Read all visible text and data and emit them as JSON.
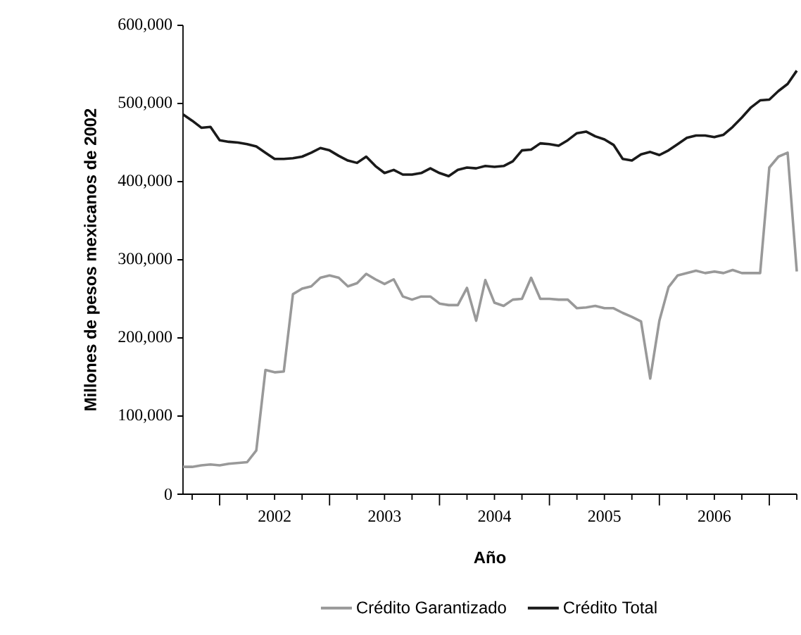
{
  "chart_data": {
    "type": "line",
    "xlabel": "Año",
    "ylabel": "Millones de pesos mexicanos de 2002",
    "x": [
      "2001-09",
      "2001-10",
      "2001-11",
      "2001-12",
      "2002-01",
      "2002-02",
      "2002-03",
      "2002-04",
      "2002-05",
      "2002-06",
      "2002-07",
      "2002-08",
      "2002-09",
      "2002-10",
      "2002-11",
      "2002-12",
      "2003-01",
      "2003-02",
      "2003-03",
      "2003-04",
      "2003-05",
      "2003-06",
      "2003-07",
      "2003-08",
      "2003-09",
      "2003-10",
      "2003-11",
      "2003-12",
      "2004-01",
      "2004-02",
      "2004-03",
      "2004-04",
      "2004-05",
      "2004-06",
      "2004-07",
      "2004-08",
      "2004-09",
      "2004-10",
      "2004-11",
      "2004-12",
      "2005-01",
      "2005-02",
      "2005-03",
      "2005-04",
      "2005-05",
      "2005-06",
      "2005-07",
      "2005-08",
      "2005-09",
      "2005-10",
      "2005-11",
      "2005-12",
      "2006-01",
      "2006-02",
      "2006-03",
      "2006-04",
      "2006-05",
      "2006-06",
      "2006-07",
      "2006-08",
      "2006-09",
      "2006-10",
      "2006-11",
      "2006-12",
      "2007-01",
      "2007-02",
      "2007-03",
      "2007-04"
    ],
    "series": [
      {
        "name": "Crédito Garantizado",
        "color": "#999999",
        "values": [
          35000,
          35000,
          37000,
          38000,
          37000,
          39000,
          40000,
          41000,
          56000,
          159000,
          156000,
          157000,
          256000,
          263000,
          266000,
          277000,
          280000,
          277000,
          266000,
          270000,
          282000,
          275000,
          269000,
          275000,
          253000,
          249000,
          253000,
          253000,
          244000,
          242000,
          242000,
          264000,
          222000,
          274000,
          245000,
          241000,
          249000,
          250000,
          277000,
          250000,
          250000,
          249000,
          249000,
          238000,
          239000,
          241000,
          238000,
          238000,
          232000,
          227000,
          221000,
          148000,
          222000,
          265000,
          280000,
          283000,
          286000,
          283000,
          285000,
          283000,
          287000,
          283000,
          283000,
          283000,
          418000,
          432000,
          437000,
          285000
        ]
      },
      {
        "name": "Crédito Total",
        "color": "#1a1a1a",
        "values": [
          486000,
          478000,
          469000,
          470000,
          453000,
          451000,
          450000,
          448000,
          445000,
          437000,
          429000,
          429000,
          430000,
          432000,
          437000,
          443000,
          440000,
          433000,
          427000,
          424000,
          432000,
          420000,
          411000,
          415000,
          409000,
          409000,
          411000,
          417000,
          411000,
          407000,
          415000,
          418000,
          417000,
          420000,
          419000,
          420000,
          426000,
          440000,
          441000,
          449000,
          448000,
          446000,
          453000,
          462000,
          464000,
          458000,
          454000,
          447000,
          429000,
          427000,
          435000,
          438000,
          434000,
          440000,
          448000,
          456000,
          459000,
          459000,
          457000,
          460000,
          470000,
          482000,
          495000,
          504000,
          505000,
          516000,
          525000,
          542000
        ]
      }
    ],
    "xlim": [
      "2001-09",
      "2007-04"
    ],
    "xticks": [
      {
        "value": "2001-10",
        "label": null
      },
      {
        "value": "2002-01",
        "label": null
      },
      {
        "value": "2002-04",
        "label": null
      },
      {
        "value": "2002-07",
        "label": "2002"
      },
      {
        "value": "2002-10",
        "label": null
      },
      {
        "value": "2003-01",
        "label": null
      },
      {
        "value": "2003-04",
        "label": null
      },
      {
        "value": "2003-07",
        "label": "2003"
      },
      {
        "value": "2003-10",
        "label": null
      },
      {
        "value": "2004-01",
        "label": null
      },
      {
        "value": "2004-04",
        "label": null
      },
      {
        "value": "2004-07",
        "label": "2004"
      },
      {
        "value": "2004-10",
        "label": null
      },
      {
        "value": "2005-01",
        "label": null
      },
      {
        "value": "2005-04",
        "label": null
      },
      {
        "value": "2005-07",
        "label": "2005"
      },
      {
        "value": "2005-10",
        "label": null
      },
      {
        "value": "2006-01",
        "label": null
      },
      {
        "value": "2006-04",
        "label": null
      },
      {
        "value": "2006-07",
        "label": "2006"
      },
      {
        "value": "2006-10",
        "label": null
      },
      {
        "value": "2007-01",
        "label": null
      },
      {
        "value": "2007-04",
        "label": null
      }
    ],
    "ylim": [
      0,
      600000
    ],
    "yticks": [
      0,
      {
        "value": 100000,
        "label": "100,000"
      },
      {
        "value": 200000,
        "label": "200,000"
      },
      {
        "value": 300000,
        "label": "300,000"
      },
      {
        "value": 400000,
        "label": "400,000"
      },
      {
        "value": 500000,
        "label": "500,000"
      },
      {
        "value": 600000,
        "label": "600,000"
      }
    ],
    "grid": false,
    "legend": "bottom",
    "marker": "none",
    "line_style": "solid"
  }
}
